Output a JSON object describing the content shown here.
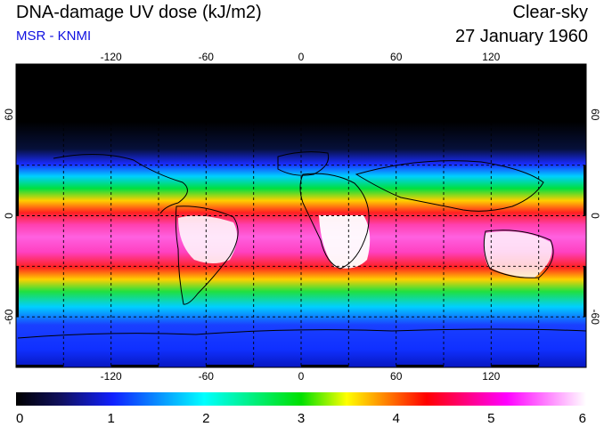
{
  "header": {
    "title": "DNA-damage UV dose (kJ/m2)",
    "source": "MSR - KNMI",
    "condition": "Clear-sky",
    "date": "27 January 1960"
  },
  "map": {
    "projection": "equirectangular",
    "lon_range": [
      -180,
      180
    ],
    "lat_range": [
      -90,
      90
    ],
    "lon_ticks": [
      "-120",
      "-60",
      "0",
      "60",
      "120"
    ],
    "lat_ticks_left": [
      "60",
      "0",
      "-60"
    ],
    "lat_ticks_right": [
      "60",
      "0",
      "-60"
    ],
    "grid": "dashed every 30 degrees"
  },
  "colorbar": {
    "min": 0,
    "max": 6,
    "tick_labels": [
      "0",
      "1",
      "2",
      "3",
      "4",
      "5",
      "6"
    ],
    "colors": [
      "#000000",
      "#1020ff",
      "#00ffff",
      "#00e000",
      "#ffff00",
      "#ff0000",
      "#ff00ff",
      "#ffffff"
    ]
  }
}
